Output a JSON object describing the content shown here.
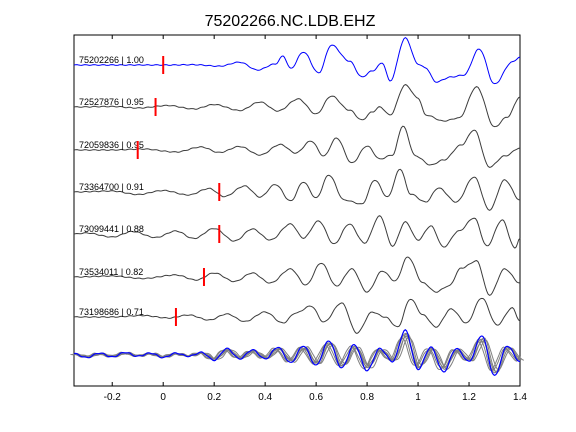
{
  "chart_data": {
    "type": "line",
    "title": "75202266.NC.LDB.EHZ",
    "xlabel": "",
    "ylabel": "",
    "xlim": [
      -0.35,
      1.4
    ],
    "xticks": [
      -0.2,
      0,
      0.2,
      0.4,
      0.6,
      0.8,
      1,
      1.2,
      1.4
    ],
    "xtick_labels": [
      "-0.2",
      "0",
      "0.2",
      "0.4",
      "0.6",
      "0.8",
      "1",
      "1.2",
      "1.4"
    ],
    "grid": false,
    "legend": "none",
    "colors": {
      "reference": "#0000ff",
      "trace": "#3c3c3c",
      "stack": "#808080",
      "pick": "#ff0000",
      "axes": "#000000"
    },
    "traces": [
      {
        "label": "75202266 | 1.00",
        "pick_time": 0.0,
        "reference": true,
        "pattern": [
          [
            0.02,
            0.0
          ],
          [
            0.12,
            0.03
          ],
          [
            0.22,
            -0.12
          ],
          [
            0.3,
            0.28
          ],
          [
            0.37,
            -0.5
          ],
          [
            0.44,
            0.1
          ],
          [
            0.47,
            0.9
          ],
          [
            0.5,
            -0.35
          ],
          [
            0.55,
            1.3
          ],
          [
            0.61,
            -0.8
          ],
          [
            0.66,
            2.0
          ],
          [
            0.73,
            0.4
          ],
          [
            0.78,
            -1.2
          ],
          [
            0.82,
            -0.6
          ],
          [
            0.86,
            0.2
          ],
          [
            0.89,
            -1.6
          ],
          [
            0.95,
            2.7
          ],
          [
            1.0,
            0.1
          ],
          [
            1.03,
            -0.3
          ],
          [
            1.07,
            -1.7
          ],
          [
            1.13,
            -1.2
          ],
          [
            1.18,
            -1.0
          ],
          [
            1.24,
            1.6
          ],
          [
            1.3,
            -1.9
          ],
          [
            1.37,
            0.3
          ],
          [
            1.4,
            0.8
          ]
        ]
      },
      {
        "label": "72527876 | 0.95",
        "pick_time": -0.03,
        "reference": false,
        "pattern": [
          [
            -0.2,
            0.05
          ],
          [
            -0.1,
            -0.1
          ],
          [
            0.02,
            0.15
          ],
          [
            0.12,
            -0.2
          ],
          [
            0.2,
            0.25
          ],
          [
            0.3,
            -0.35
          ],
          [
            0.38,
            0.5
          ],
          [
            0.45,
            -0.4
          ],
          [
            0.53,
            0.8
          ],
          [
            0.6,
            -0.7
          ],
          [
            0.66,
            1.1
          ],
          [
            0.73,
            -0.3
          ],
          [
            0.78,
            -1.3
          ],
          [
            0.82,
            -0.5
          ],
          [
            0.85,
            0.0
          ],
          [
            0.89,
            -0.8
          ],
          [
            0.95,
            2.2
          ],
          [
            1.0,
            0.9
          ],
          [
            1.03,
            -0.8
          ],
          [
            1.1,
            -1.4
          ],
          [
            1.16,
            -1.1
          ],
          [
            1.23,
            2.0
          ],
          [
            1.3,
            -2.0
          ],
          [
            1.35,
            -1.0
          ],
          [
            1.4,
            1.0
          ]
        ]
      },
      {
        "label": "72059836 | 0.95",
        "pick_time": -0.1,
        "reference": false,
        "pattern": [
          [
            -0.2,
            0.0
          ],
          [
            -0.08,
            0.1
          ],
          [
            0.05,
            -0.2
          ],
          [
            0.15,
            0.3
          ],
          [
            0.22,
            -0.25
          ],
          [
            0.3,
            0.35
          ],
          [
            0.38,
            -0.5
          ],
          [
            0.46,
            0.55
          ],
          [
            0.52,
            -0.3
          ],
          [
            0.58,
            0.9
          ],
          [
            0.63,
            -0.6
          ],
          [
            0.68,
            1.2
          ],
          [
            0.74,
            -1.3
          ],
          [
            0.8,
            0.4
          ],
          [
            0.85,
            -0.9
          ],
          [
            0.9,
            -0.5
          ],
          [
            0.94,
            2.4
          ],
          [
            0.99,
            -0.6
          ],
          [
            1.05,
            -1.5
          ],
          [
            1.1,
            -1.0
          ],
          [
            1.17,
            0.5
          ],
          [
            1.22,
            2.0
          ],
          [
            1.28,
            -1.7
          ],
          [
            1.34,
            -0.6
          ],
          [
            1.4,
            0.2
          ]
        ]
      },
      {
        "label": "73364700 | 0.91",
        "pick_time": 0.22,
        "reference": false,
        "pattern": [
          [
            -0.2,
            0.1
          ],
          [
            -0.1,
            -0.25
          ],
          [
            0.0,
            0.15
          ],
          [
            0.1,
            -0.3
          ],
          [
            0.18,
            0.35
          ],
          [
            0.24,
            -0.45
          ],
          [
            0.32,
            0.6
          ],
          [
            0.38,
            -0.5
          ],
          [
            0.44,
            0.75
          ],
          [
            0.5,
            -0.9
          ],
          [
            0.55,
            1.0
          ],
          [
            0.6,
            -0.6
          ],
          [
            0.65,
            1.7
          ],
          [
            0.71,
            -0.8
          ],
          [
            0.78,
            -1.2
          ],
          [
            0.83,
            1.2
          ],
          [
            0.88,
            -0.5
          ],
          [
            0.93,
            2.3
          ],
          [
            0.97,
            -0.2
          ],
          [
            1.03,
            -1.0
          ],
          [
            1.08,
            0.4
          ],
          [
            1.15,
            -1.0
          ],
          [
            1.22,
            1.5
          ],
          [
            1.28,
            -1.8
          ],
          [
            1.34,
            1.2
          ],
          [
            1.4,
            -0.8
          ]
        ]
      },
      {
        "label": "73099441 | 0.88",
        "pick_time": 0.22,
        "reference": false,
        "pattern": [
          [
            -0.3,
            0.1
          ],
          [
            -0.2,
            -0.3
          ],
          [
            -0.12,
            0.25
          ],
          [
            -0.03,
            -0.35
          ],
          [
            0.05,
            0.3
          ],
          [
            0.12,
            -0.45
          ],
          [
            0.2,
            0.55
          ],
          [
            0.28,
            -0.7
          ],
          [
            0.35,
            0.5
          ],
          [
            0.42,
            -0.6
          ],
          [
            0.5,
            1.0
          ],
          [
            0.55,
            -0.4
          ],
          [
            0.61,
            1.3
          ],
          [
            0.67,
            -1.0
          ],
          [
            0.73,
            1.0
          ],
          [
            0.79,
            -0.9
          ],
          [
            0.85,
            1.8
          ],
          [
            0.9,
            -1.2
          ],
          [
            0.95,
            1.2
          ],
          [
            1.0,
            -0.6
          ],
          [
            1.05,
            0.8
          ],
          [
            1.1,
            -1.3
          ],
          [
            1.16,
            0.3
          ],
          [
            1.22,
            1.6
          ],
          [
            1.27,
            -1.2
          ],
          [
            1.33,
            1.4
          ],
          [
            1.38,
            -1.4
          ]
        ]
      },
      {
        "label": "73534011 | 0.82",
        "pick_time": 0.16,
        "reference": false,
        "pattern": [
          [
            -0.2,
            0.1
          ],
          [
            -0.08,
            -0.15
          ],
          [
            0.05,
            0.2
          ],
          [
            0.13,
            -0.3
          ],
          [
            0.2,
            0.4
          ],
          [
            0.28,
            -0.45
          ],
          [
            0.35,
            0.4
          ],
          [
            0.42,
            -0.6
          ],
          [
            0.5,
            0.8
          ],
          [
            0.56,
            -0.8
          ],
          [
            0.62,
            1.4
          ],
          [
            0.68,
            -0.9
          ],
          [
            0.74,
            0.8
          ],
          [
            0.8,
            -1.5
          ],
          [
            0.86,
            0.6
          ],
          [
            0.91,
            -0.4
          ],
          [
            0.96,
            2.0
          ],
          [
            1.02,
            -0.6
          ],
          [
            1.07,
            -1.5
          ],
          [
            1.12,
            -0.9
          ],
          [
            1.17,
            0.9
          ],
          [
            1.23,
            1.6
          ],
          [
            1.28,
            -1.8
          ],
          [
            1.34,
            0.8
          ],
          [
            1.4,
            -0.6
          ]
        ]
      },
      {
        "label": "73198686 | 0.71",
        "pick_time": 0.05,
        "reference": false,
        "pattern": [
          [
            -0.2,
            0.0
          ],
          [
            -0.08,
            0.15
          ],
          [
            0.02,
            -0.1
          ],
          [
            0.1,
            0.2
          ],
          [
            0.18,
            -0.3
          ],
          [
            0.25,
            0.3
          ],
          [
            0.32,
            -0.45
          ],
          [
            0.4,
            0.5
          ],
          [
            0.47,
            -0.6
          ],
          [
            0.52,
            0.4
          ],
          [
            0.58,
            1.1
          ],
          [
            0.63,
            -0.5
          ],
          [
            0.7,
            1.4
          ],
          [
            0.76,
            -1.6
          ],
          [
            0.82,
            0.5
          ],
          [
            0.87,
            0.0
          ],
          [
            0.92,
            -1.0
          ],
          [
            0.97,
            1.8
          ],
          [
            1.02,
            0.2
          ],
          [
            1.07,
            -1.0
          ],
          [
            1.13,
            0.8
          ],
          [
            1.19,
            -0.6
          ],
          [
            1.25,
            1.9
          ],
          [
            1.31,
            -0.8
          ],
          [
            1.37,
            0.9
          ],
          [
            1.4,
            -0.4
          ]
        ]
      }
    ],
    "stack": {
      "reference_label": "75202266",
      "pattern": [
        [
          -0.35,
          0.1
        ],
        [
          -0.3,
          -0.2
        ],
        [
          -0.25,
          0.15
        ],
        [
          -0.2,
          -0.15
        ],
        [
          -0.15,
          0.2
        ],
        [
          -0.1,
          -0.1
        ],
        [
          -0.05,
          0.15
        ],
        [
          0.0,
          -0.2
        ],
        [
          0.05,
          0.15
        ],
        [
          0.1,
          -0.1
        ],
        [
          0.15,
          0.2
        ],
        [
          0.2,
          -0.4
        ],
        [
          0.25,
          0.5
        ],
        [
          0.3,
          -0.3
        ],
        [
          0.35,
          0.4
        ],
        [
          0.4,
          -0.3
        ],
        [
          0.45,
          0.6
        ],
        [
          0.5,
          -0.6
        ],
        [
          0.55,
          0.7
        ],
        [
          0.6,
          -0.8
        ],
        [
          0.65,
          1.1
        ],
        [
          0.7,
          -1.0
        ],
        [
          0.75,
          0.8
        ],
        [
          0.8,
          -1.2
        ],
        [
          0.85,
          0.5
        ],
        [
          0.9,
          -0.5
        ],
        [
          0.95,
          1.9
        ],
        [
          1.0,
          -1.1
        ],
        [
          1.05,
          0.6
        ],
        [
          1.1,
          -1.3
        ],
        [
          1.15,
          0.5
        ],
        [
          1.2,
          -0.5
        ],
        [
          1.25,
          1.5
        ],
        [
          1.3,
          -1.6
        ],
        [
          1.35,
          0.7
        ],
        [
          1.4,
          -0.5
        ]
      ]
    }
  }
}
